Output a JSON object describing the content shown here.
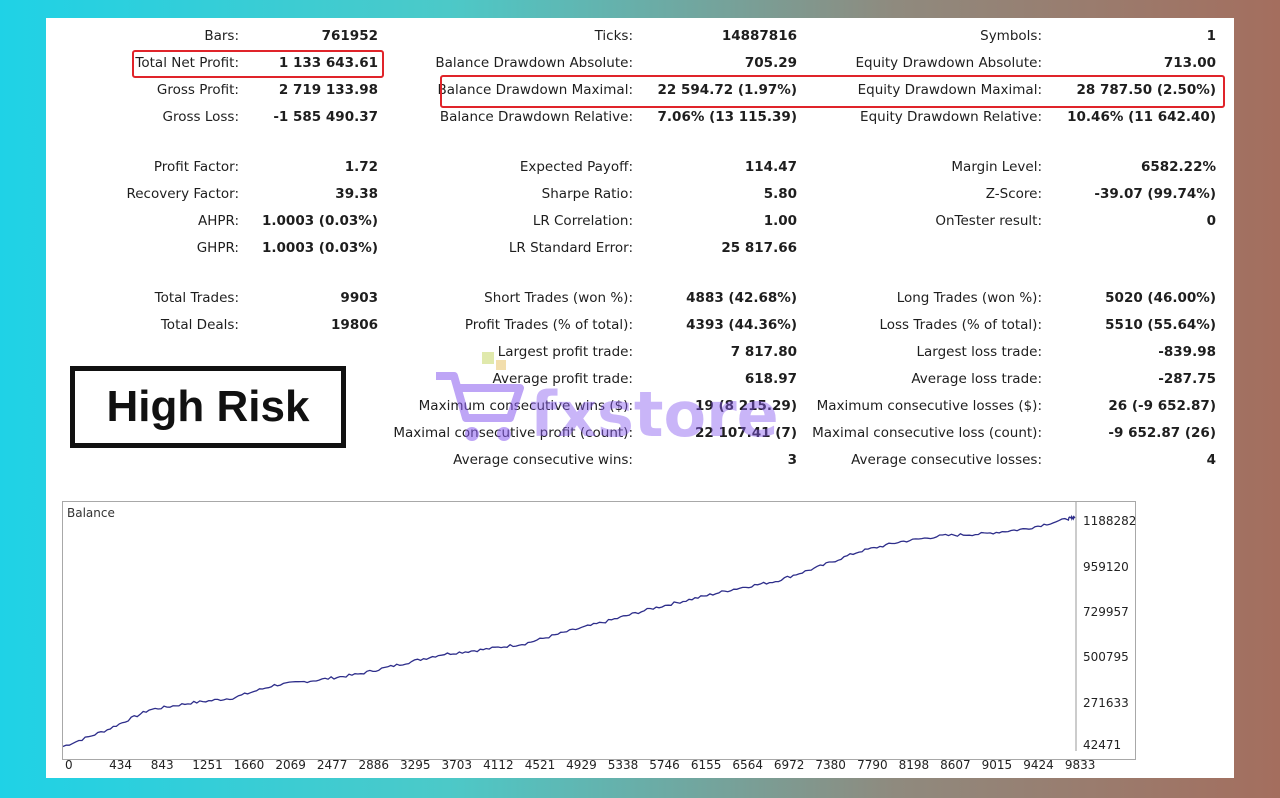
{
  "col1": [
    {
      "label": "Bars:",
      "value": "761952"
    },
    {
      "label": "Total Net Profit:",
      "value": "1 133 643.61"
    },
    {
      "label": "Gross Profit:",
      "value": "2 719 133.98"
    },
    {
      "label": "Gross Loss:",
      "value": "-1 585 490.37"
    },
    {
      "label": "Profit Factor:",
      "value": "1.72"
    },
    {
      "label": "Recovery Factor:",
      "value": "39.38"
    },
    {
      "label": "AHPR:",
      "value": "1.0003 (0.03%)"
    },
    {
      "label": "GHPR:",
      "value": "1.0003 (0.03%)"
    },
    {
      "label": "Total Trades:",
      "value": "9903"
    },
    {
      "label": "Total Deals:",
      "value": "19806"
    }
  ],
  "col2": [
    {
      "label": "Ticks:",
      "value": "14887816"
    },
    {
      "label": "Balance Drawdown Absolute:",
      "value": "705.29"
    },
    {
      "label": "Balance Drawdown Maximal:",
      "value": "22 594.72 (1.97%)"
    },
    {
      "label": "Balance Drawdown Relative:",
      "value": "7.06% (13 115.39)"
    },
    {
      "label": "Expected Payoff:",
      "value": "114.47"
    },
    {
      "label": "Sharpe Ratio:",
      "value": "5.80"
    },
    {
      "label": "LR Correlation:",
      "value": "1.00"
    },
    {
      "label": "LR Standard Error:",
      "value": "25 817.66"
    },
    {
      "label": "Short Trades (won %):",
      "value": "4883 (42.68%)"
    },
    {
      "label": "Profit Trades (% of total):",
      "value": "4393 (44.36%)"
    },
    {
      "label": "Largest profit trade:",
      "value": "7 817.80"
    },
    {
      "label": "Average profit trade:",
      "value": "618.97"
    },
    {
      "label": "Maximum consecutive wins ($):",
      "value": "19 (8 215.29)"
    },
    {
      "label": "Maximal consecutive profit (count):",
      "value": "22 107.41 (7)"
    },
    {
      "label": "Average consecutive wins:",
      "value": "3"
    }
  ],
  "col3": [
    {
      "label": "Symbols:",
      "value": "1"
    },
    {
      "label": "Equity Drawdown Absolute:",
      "value": "713.00"
    },
    {
      "label": "Equity Drawdown Maximal:",
      "value": "28 787.50 (2.50%)"
    },
    {
      "label": "Equity Drawdown Relative:",
      "value": "10.46% (11 642.40)"
    },
    {
      "label": "Margin Level:",
      "value": "6582.22%"
    },
    {
      "label": "Z-Score:",
      "value": "-39.07 (99.74%)"
    },
    {
      "label": "OnTester result:",
      "value": "0"
    },
    {
      "label": "Long Trades (won %):",
      "value": "5020 (46.00%)"
    },
    {
      "label": "Loss Trades (% of total):",
      "value": "5510 (55.64%)"
    },
    {
      "label": "Largest loss trade:",
      "value": "-839.98"
    },
    {
      "label": "Average loss trade:",
      "value": "-287.75"
    },
    {
      "label": "Maximum consecutive losses ($):",
      "value": "26 (-9 652.87)"
    },
    {
      "label": "Maximal consecutive loss (count):",
      "value": "-9 652.87 (26)"
    },
    {
      "label": "Average consecutive losses:",
      "value": "4"
    }
  ],
  "risk_badge": "High Risk",
  "watermark": "fxstore",
  "colors": {
    "highlight": "#e0242a",
    "line": "#2d2d8a",
    "watermark": "#8a5cf0"
  },
  "chart_data": {
    "type": "line",
    "title": "Balance",
    "x_ticks": [
      "0",
      "434",
      "843",
      "1251",
      "1660",
      "2069",
      "2477",
      "2886",
      "3295",
      "3703",
      "4112",
      "4521",
      "4929",
      "5338",
      "5746",
      "6155",
      "6564",
      "6972",
      "7380",
      "7790",
      "8198",
      "8607",
      "9015",
      "9424",
      "9833"
    ],
    "y_ticks": [
      "1188282",
      "959120",
      "729957",
      "500795",
      "271633",
      "42471"
    ],
    "ylim": [
      42471,
      1250000
    ],
    "xlim": [
      0,
      9903
    ],
    "series": [
      {
        "x": [
          0,
          434,
          843,
          1251,
          1660,
          2069,
          2477,
          2886,
          3295,
          3703,
          4112,
          4521,
          4929,
          5338,
          5746,
          6155,
          6564,
          6972,
          7380,
          7790,
          8198,
          8607,
          9015,
          9424,
          9833,
          9903
        ],
        "y": [
          55000,
          140000,
          240000,
          275000,
          300000,
          365000,
          390000,
          420000,
          470000,
          520000,
          545000,
          575000,
          635000,
          690000,
          750000,
          800000,
          850000,
          890000,
          960000,
          1040000,
          1090000,
          1120000,
          1130000,
          1155000,
          1205000,
          1215000
        ]
      }
    ]
  }
}
